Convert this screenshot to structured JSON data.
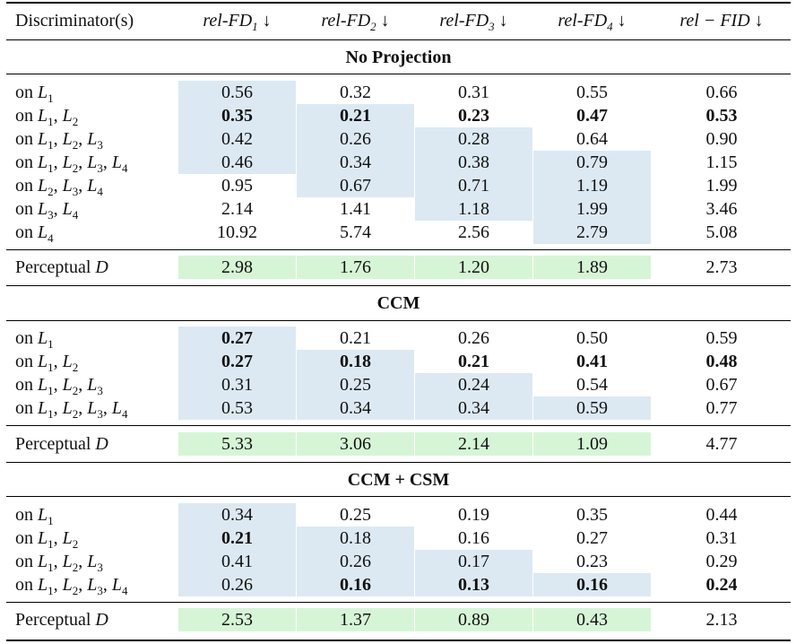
{
  "header": {
    "col0": "Discriminator(s)",
    "cols": [
      {
        "name": "rel-FD",
        "sub": "1",
        "arrow": "↓"
      },
      {
        "name": "rel-FD",
        "sub": "2",
        "arrow": "↓"
      },
      {
        "name": "rel-FD",
        "sub": "3",
        "arrow": "↓"
      },
      {
        "name": "rel-FD",
        "sub": "4",
        "arrow": "↓"
      },
      {
        "name": "rel − FID",
        "sub": "",
        "arrow": "↓"
      }
    ]
  },
  "sections": [
    {
      "title": "No Projection",
      "rows": [
        {
          "prefix": "on",
          "layers": [
            "1"
          ],
          "values": [
            "0.56",
            "0.32",
            "0.31",
            "0.55",
            "0.66"
          ],
          "bold": [
            false,
            false,
            false,
            false,
            false
          ],
          "blue": [
            true,
            false,
            false,
            false,
            false
          ]
        },
        {
          "prefix": "on",
          "layers": [
            "1",
            "2"
          ],
          "values": [
            "0.35",
            "0.21",
            "0.23",
            "0.47",
            "0.53"
          ],
          "bold": [
            true,
            true,
            true,
            true,
            true
          ],
          "blue": [
            true,
            true,
            false,
            false,
            false
          ]
        },
        {
          "prefix": "on",
          "layers": [
            "1",
            "2",
            "3"
          ],
          "values": [
            "0.42",
            "0.26",
            "0.28",
            "0.64",
            "0.90"
          ],
          "bold": [
            false,
            false,
            false,
            false,
            false
          ],
          "blue": [
            true,
            true,
            true,
            false,
            false
          ]
        },
        {
          "prefix": "on",
          "layers": [
            "1",
            "2",
            "3",
            "4"
          ],
          "values": [
            "0.46",
            "0.34",
            "0.38",
            "0.79",
            "1.15"
          ],
          "bold": [
            false,
            false,
            false,
            false,
            false
          ],
          "blue": [
            true,
            true,
            true,
            true,
            false
          ]
        },
        {
          "prefix": "on",
          "layers": [
            "2",
            "3",
            "4"
          ],
          "values": [
            "0.95",
            "0.67",
            "0.71",
            "1.19",
            "1.99"
          ],
          "bold": [
            false,
            false,
            false,
            false,
            false
          ],
          "blue": [
            false,
            true,
            true,
            true,
            false
          ]
        },
        {
          "prefix": "on",
          "layers": [
            "3",
            "4"
          ],
          "values": [
            "2.14",
            "1.41",
            "1.18",
            "1.99",
            "3.46"
          ],
          "bold": [
            false,
            false,
            false,
            false,
            false
          ],
          "blue": [
            false,
            false,
            true,
            true,
            false
          ]
        },
        {
          "prefix": "on",
          "layers": [
            "4"
          ],
          "values": [
            "10.92",
            "5.74",
            "2.56",
            "2.79",
            "5.08"
          ],
          "bold": [
            false,
            false,
            false,
            false,
            false
          ],
          "blue": [
            false,
            false,
            false,
            true,
            false
          ]
        }
      ],
      "perceptual": {
        "label": "Perceptual",
        "d": "D",
        "values": [
          "2.98",
          "1.76",
          "1.20",
          "1.89",
          "2.73"
        ]
      }
    },
    {
      "title": "CCM",
      "rows": [
        {
          "prefix": "on",
          "layers": [
            "1"
          ],
          "values": [
            "0.27",
            "0.21",
            "0.26",
            "0.50",
            "0.59"
          ],
          "bold": [
            true,
            false,
            false,
            false,
            false
          ],
          "blue": [
            true,
            false,
            false,
            false,
            false
          ]
        },
        {
          "prefix": "on",
          "layers": [
            "1",
            "2"
          ],
          "values": [
            "0.27",
            "0.18",
            "0.21",
            "0.41",
            "0.48"
          ],
          "bold": [
            true,
            true,
            true,
            true,
            true
          ],
          "blue": [
            true,
            true,
            false,
            false,
            false
          ]
        },
        {
          "prefix": "on",
          "layers": [
            "1",
            "2",
            "3"
          ],
          "values": [
            "0.31",
            "0.25",
            "0.24",
            "0.54",
            "0.67"
          ],
          "bold": [
            false,
            false,
            false,
            false,
            false
          ],
          "blue": [
            true,
            true,
            true,
            false,
            false
          ]
        },
        {
          "prefix": "on",
          "layers": [
            "1",
            "2",
            "3",
            "4"
          ],
          "values": [
            "0.53",
            "0.34",
            "0.34",
            "0.59",
            "0.77"
          ],
          "bold": [
            false,
            false,
            false,
            false,
            false
          ],
          "blue": [
            true,
            true,
            true,
            true,
            false
          ]
        }
      ],
      "perceptual": {
        "label": "Perceptual",
        "d": "D",
        "values": [
          "5.33",
          "3.06",
          "2.14",
          "1.09",
          "4.77"
        ]
      }
    },
    {
      "title": "CCM + CSM",
      "rows": [
        {
          "prefix": "on",
          "layers": [
            "1"
          ],
          "values": [
            "0.34",
            "0.25",
            "0.19",
            "0.35",
            "0.44"
          ],
          "bold": [
            false,
            false,
            false,
            false,
            false
          ],
          "blue": [
            true,
            false,
            false,
            false,
            false
          ]
        },
        {
          "prefix": "on",
          "layers": [
            "1",
            "2"
          ],
          "values": [
            "0.21",
            "0.18",
            "0.16",
            "0.27",
            "0.31"
          ],
          "bold": [
            true,
            false,
            false,
            false,
            false
          ],
          "blue": [
            true,
            true,
            false,
            false,
            false
          ]
        },
        {
          "prefix": "on",
          "layers": [
            "1",
            "2",
            "3"
          ],
          "values": [
            "0.41",
            "0.26",
            "0.17",
            "0.23",
            "0.29"
          ],
          "bold": [
            false,
            false,
            false,
            false,
            false
          ],
          "blue": [
            true,
            true,
            true,
            false,
            false
          ]
        },
        {
          "prefix": "on",
          "layers": [
            "1",
            "2",
            "3",
            "4"
          ],
          "values": [
            "0.26",
            "0.16",
            "0.13",
            "0.16",
            "0.24"
          ],
          "bold": [
            false,
            true,
            true,
            true,
            true
          ],
          "blue": [
            true,
            true,
            true,
            true,
            false
          ]
        }
      ],
      "perceptual": {
        "label": "Perceptual",
        "d": "D",
        "values": [
          "2.53",
          "1.37",
          "0.89",
          "0.43",
          "2.13"
        ]
      }
    }
  ],
  "colors": {
    "blue_highlight": "#dce9f3",
    "green_highlight": "#d6f5d6"
  }
}
